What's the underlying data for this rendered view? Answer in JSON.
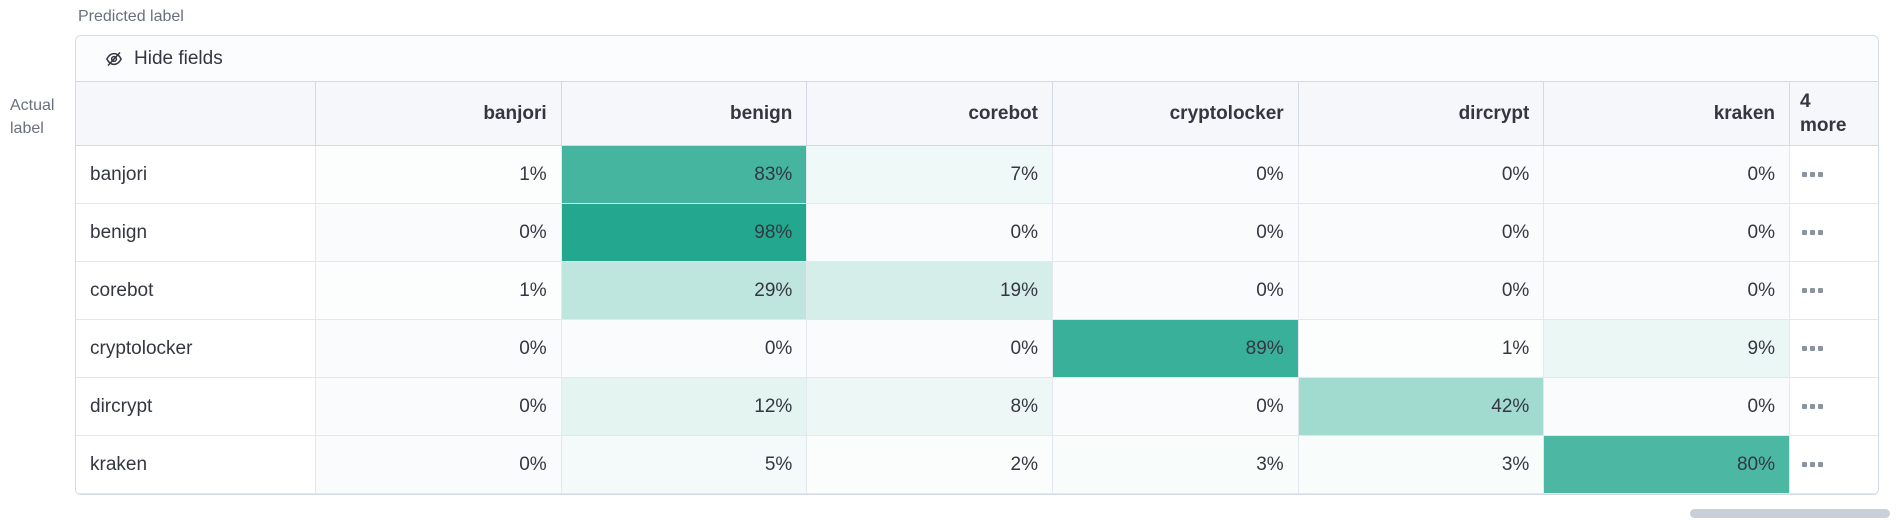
{
  "axis": {
    "predicted_label": "Predicted label",
    "actual_label": "Actual label"
  },
  "toolbar": {
    "hide_fields_label": "Hide fields"
  },
  "grid": {
    "columns": [
      "banjori",
      "benign",
      "corebot",
      "cryptolocker",
      "dircrypt",
      "kraken"
    ],
    "more_column": {
      "count": "4",
      "label": "more"
    },
    "value_suffix": "%",
    "rows": [
      {
        "label": "banjori",
        "values": [
          1,
          83,
          7,
          0,
          0,
          0
        ]
      },
      {
        "label": "benign",
        "values": [
          0,
          98,
          0,
          0,
          0,
          0
        ]
      },
      {
        "label": "corebot",
        "values": [
          1,
          29,
          19,
          0,
          0,
          0
        ]
      },
      {
        "label": "cryptolocker",
        "values": [
          0,
          0,
          0,
          89,
          1,
          9
        ]
      },
      {
        "label": "dircrypt",
        "values": [
          0,
          12,
          8,
          0,
          42,
          0
        ]
      },
      {
        "label": "kraken",
        "values": [
          0,
          5,
          2,
          3,
          3,
          80
        ]
      }
    ]
  },
  "colors": {
    "heatmap_rgb": "31, 166, 141",
    "panel_border": "#D3DAE6",
    "cell_border": "#E3E8EE",
    "header_bg": "#F5F7FA",
    "cell_bg": "#FAFBFD",
    "text": "#343741",
    "muted_text": "#69707D"
  }
}
